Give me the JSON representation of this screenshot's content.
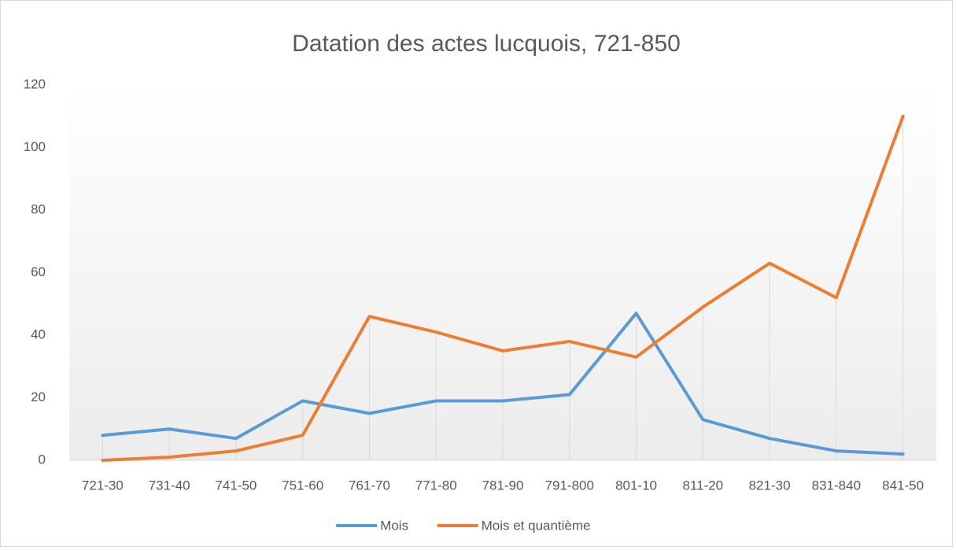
{
  "chart_data": {
    "type": "line",
    "title": "Datation des actes lucquois, 721-850",
    "categories": [
      "721-30",
      "731-40",
      "741-50",
      "751-60",
      "761-70",
      "771-80",
      "781-90",
      "791-800",
      "801-10",
      "811-20",
      "821-30",
      "831-840",
      "841-50"
    ],
    "series": [
      {
        "name": "Mois",
        "color": "#5b9bd5",
        "values": [
          8,
          10,
          7,
          19,
          15,
          19,
          19,
          21,
          47,
          13,
          7,
          3,
          2
        ]
      },
      {
        "name": "Mois et quantième",
        "color": "#ed7d31",
        "values": [
          0,
          1,
          3,
          8,
          46,
          41,
          35,
          38,
          33,
          49,
          63,
          52,
          110
        ]
      }
    ],
    "ylim": [
      0,
      120
    ],
    "yticks": [
      0,
      20,
      40,
      60,
      80,
      100,
      120
    ],
    "grid": false,
    "legend": "bottom"
  }
}
